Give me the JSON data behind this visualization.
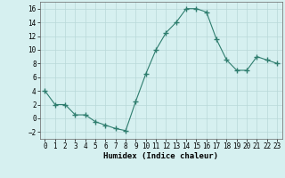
{
  "x": [
    0,
    1,
    2,
    3,
    4,
    5,
    6,
    7,
    8,
    9,
    10,
    11,
    12,
    13,
    14,
    15,
    16,
    17,
    18,
    19,
    20,
    21,
    22,
    23
  ],
  "y": [
    4,
    2,
    2,
    0.5,
    0.5,
    -0.5,
    -1,
    -1.5,
    -1.8,
    2.5,
    6.5,
    10,
    12.5,
    14,
    16,
    16,
    15.5,
    11.5,
    8.5,
    7,
    7,
    9,
    8.5,
    8
  ],
  "xlabel": "Humidex (Indice chaleur)",
  "xlim": [
    -0.5,
    23.5
  ],
  "ylim": [
    -3,
    17
  ],
  "yticks": [
    -2,
    0,
    2,
    4,
    6,
    8,
    10,
    12,
    14,
    16
  ],
  "xticks": [
    0,
    1,
    2,
    3,
    4,
    5,
    6,
    7,
    8,
    9,
    10,
    11,
    12,
    13,
    14,
    15,
    16,
    17,
    18,
    19,
    20,
    21,
    22,
    23
  ],
  "line_color": "#2e7d6e",
  "marker": "+",
  "marker_size": 4,
  "bg_color": "#d6f0f0",
  "grid_color": "#b8d8d8",
  "tick_fontsize": 5.5,
  "label_fontsize": 6.5
}
